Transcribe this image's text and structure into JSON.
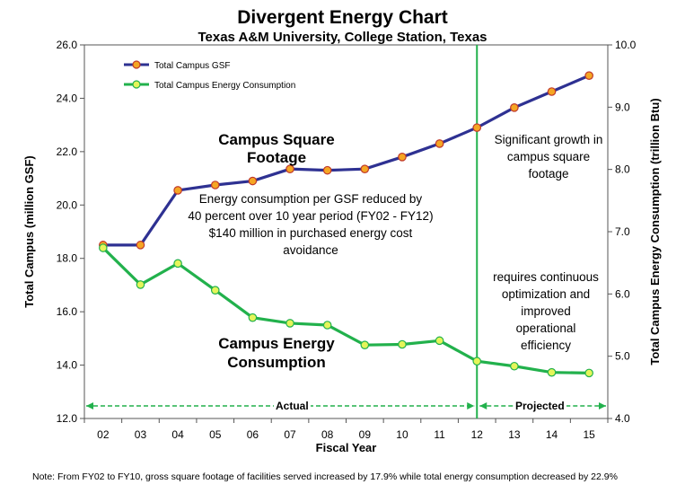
{
  "chart_data": {
    "type": "line",
    "title": "Divergent Energy Chart",
    "subtitle": "Texas A&M University, College Station, Texas",
    "xlabel": "Fiscal Year",
    "ylabel_left": "Total Campus (million GSF)",
    "ylabel_right": "Total Campus Energy Consumption (trillion Btu)",
    "categories": [
      "02",
      "03",
      "04",
      "05",
      "06",
      "07",
      "08",
      "09",
      "10",
      "11",
      "12",
      "13",
      "14",
      "15"
    ],
    "ylim_left": [
      12.0,
      26.0
    ],
    "yticks_left": [
      "12.0",
      "14.0",
      "16.0",
      "18.0",
      "20.0",
      "22.0",
      "24.0",
      "26.0"
    ],
    "ylim_right": [
      4.0,
      10.0
    ],
    "yticks_right": [
      "4.0",
      "5.0",
      "6.0",
      "7.0",
      "8.0",
      "9.0",
      "10.0"
    ],
    "legend_position": "top-left",
    "series": [
      {
        "name": "Total Campus GSF",
        "axis": "left",
        "color": "#2e3192",
        "marker_fill": "#f5a623",
        "values": [
          18.5,
          18.5,
          20.55,
          20.75,
          20.9,
          21.35,
          21.3,
          21.35,
          21.8,
          22.3,
          22.9,
          23.65,
          24.25,
          24.85
        ]
      },
      {
        "name": "Total Campus Energy Consumption",
        "axis": "right",
        "color": "#22b14c",
        "marker_fill": "#e5f55a",
        "values": [
          6.74,
          6.15,
          6.49,
          6.06,
          5.62,
          5.53,
          5.5,
          5.18,
          5.19,
          5.25,
          4.92,
          4.84,
          4.74,
          4.73
        ]
      }
    ],
    "divider_after": "12",
    "periods": [
      {
        "label": "Actual",
        "from": "02",
        "to": "12"
      },
      {
        "label": "Projected",
        "from": "12",
        "to": "15"
      }
    ],
    "annotations": {
      "gsf": "Campus Square Footage",
      "energy": [
        "Campus Energy",
        "Consumption"
      ],
      "reduction": [
        "Energy consumption per GSF reduced by",
        "40 percent over 10 year period (FY02 - FY12)",
        "$140 million in purchased energy cost",
        "avoidance"
      ],
      "growth": [
        "Significant growth in",
        "campus square",
        "footage"
      ],
      "optimization": [
        "requires continuous",
        "optimization and",
        "improved",
        "operational",
        "efficiency"
      ]
    },
    "note": "Note: From FY02 to FY10, gross square footage of facilities served increased by 17.9% while total energy consumption decreased by 22.9%"
  }
}
